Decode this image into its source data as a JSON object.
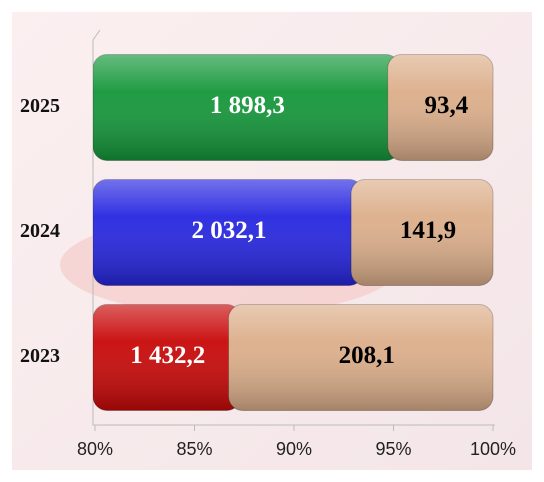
{
  "chart_data": {
    "type": "stacked_bar_100",
    "categories": [
      "2023",
      "2024",
      "2025"
    ],
    "series": [
      {
        "colors": [
          "#c80808",
          "#2626e0",
          "#14973a"
        ],
        "values": [
          1432.2,
          2032.1,
          1898.3
        ],
        "value_labels": [
          "1 432,2",
          "2 032,1",
          "1 898,3"
        ],
        "label_color": "#ffffff"
      },
      {
        "color": "#dcae8a",
        "values": [
          208.1,
          141.9,
          93.4
        ],
        "value_labels": [
          "208,1",
          "141,9",
          "93,4"
        ],
        "label_color": "#000000"
      }
    ],
    "xlim": [
      80,
      100
    ],
    "xticks": [
      {
        "value": 80,
        "label": "80%"
      },
      {
        "value": 85,
        "label": "85%"
      },
      {
        "value": 90,
        "label": "90%"
      },
      {
        "value": 95,
        "label": "95%"
      },
      {
        "value": 100,
        "label": "100%"
      }
    ]
  }
}
